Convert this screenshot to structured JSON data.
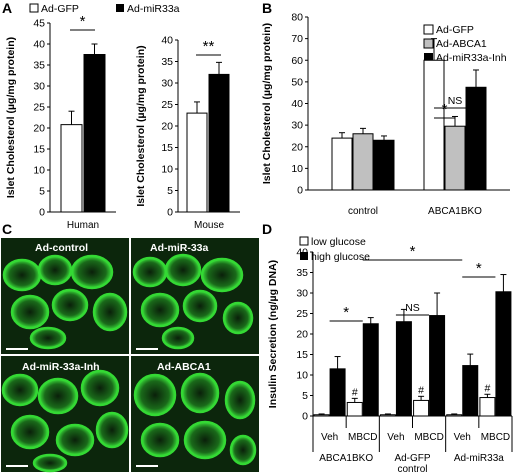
{
  "colors": {
    "ink": "#000000",
    "white_bar": "#ffffff",
    "gray_bar": "#c0c0c0",
    "black_bar": "#000000",
    "micro_bg": "#0c260c",
    "micro_green": "#34d934"
  },
  "panels": {
    "A": {
      "label": "A",
      "legend": [
        "Ad-GFP",
        "Ad-miR33a"
      ]
    },
    "B": {
      "label": "B",
      "legend": [
        "Ad-GFP",
        "Ad-ABCA1",
        "Ad-miR33a-Inh"
      ]
    },
    "C": {
      "label": "C",
      "image_labels": [
        "Ad-control",
        "Ad-miR-33a",
        "Ad-miR-33a-Inh",
        "Ad-ABCA1"
      ]
    },
    "D": {
      "label": "D",
      "legend": [
        "low glucose",
        "high glucose"
      ]
    }
  },
  "chart_data": [
    {
      "id": "A-human",
      "type": "bar",
      "title": "",
      "ylabel": "Islet Cholesterol (µg/mg protein)",
      "xlabel": "Human",
      "ylim": [
        0,
        45
      ],
      "yticks": [
        0,
        5,
        10,
        15,
        20,
        25,
        30,
        35,
        40,
        45
      ],
      "series": [
        {
          "name": "Ad-GFP",
          "values": [
            20.8
          ],
          "error": [
            3.2
          ]
        },
        {
          "name": "Ad-miR33a",
          "values": [
            37.5
          ],
          "error": [
            2.5
          ]
        }
      ],
      "annotations": [
        "*"
      ]
    },
    {
      "id": "A-mouse",
      "type": "bar",
      "title": "",
      "ylabel": "Islet Cholesterol (µg/mg protein)",
      "xlabel": "Mouse",
      "ylim": [
        0,
        40
      ],
      "yticks": [
        0,
        5,
        10,
        15,
        20,
        25,
        30,
        35,
        40
      ],
      "series": [
        {
          "name": "Ad-GFP",
          "values": [
            23
          ],
          "error": [
            2.6
          ]
        },
        {
          "name": "Ad-miR33a",
          "values": [
            32
          ],
          "error": [
            2.8
          ]
        }
      ],
      "annotations": [
        "**"
      ]
    },
    {
      "id": "B",
      "type": "bar",
      "title": "",
      "ylabel": "Islet Cholesterol (µg/mg protein)",
      "ylim": [
        0,
        80
      ],
      "yticks": [
        0,
        10,
        20,
        30,
        40,
        50,
        60,
        70,
        80
      ],
      "categories": [
        "control",
        "ABCA1BKO"
      ],
      "series": [
        {
          "name": "Ad-GFP",
          "values": [
            24,
            60
          ],
          "error": [
            2.5,
            10
          ]
        },
        {
          "name": "Ad-ABCA1",
          "values": [
            26,
            29.5
          ],
          "error": [
            2.5,
            4.5
          ]
        },
        {
          "name": "Ad-miR33a-Inh",
          "values": [
            23,
            47.5
          ],
          "error": [
            2,
            8
          ]
        }
      ],
      "annotations": [
        "NS",
        "*"
      ]
    },
    {
      "id": "D",
      "type": "bar",
      "title": "",
      "ylabel": "Insulin Secretion (ng/µg DNA)",
      "ylim": [
        0,
        40
      ],
      "yticks": [
        0,
        5,
        10,
        15,
        20,
        25,
        30,
        35,
        40
      ],
      "categories": [
        "Veh",
        "MBCD",
        "Veh",
        "MBCD",
        "Veh",
        "MBCD"
      ],
      "groups": [
        "ABCA1BKO",
        "Ad-GFP",
        "Ad-miR33a"
      ],
      "group_caption": "control",
      "series": [
        {
          "name": "low glucose",
          "values": [
            0.3,
            3.3,
            0.3,
            3.8,
            0.3,
            4.5
          ],
          "error": [
            0.2,
            1,
            0.2,
            1,
            0.2,
            0.8
          ]
        },
        {
          "name": "high glucose",
          "values": [
            11.5,
            22.5,
            23,
            24.5,
            12.3,
            30.3
          ],
          "error": [
            3,
            1.5,
            3,
            5.5,
            2.8,
            4.2
          ]
        }
      ],
      "annotations": [
        "*",
        "NS",
        "*",
        "*",
        "#",
        "#",
        "#"
      ]
    }
  ]
}
